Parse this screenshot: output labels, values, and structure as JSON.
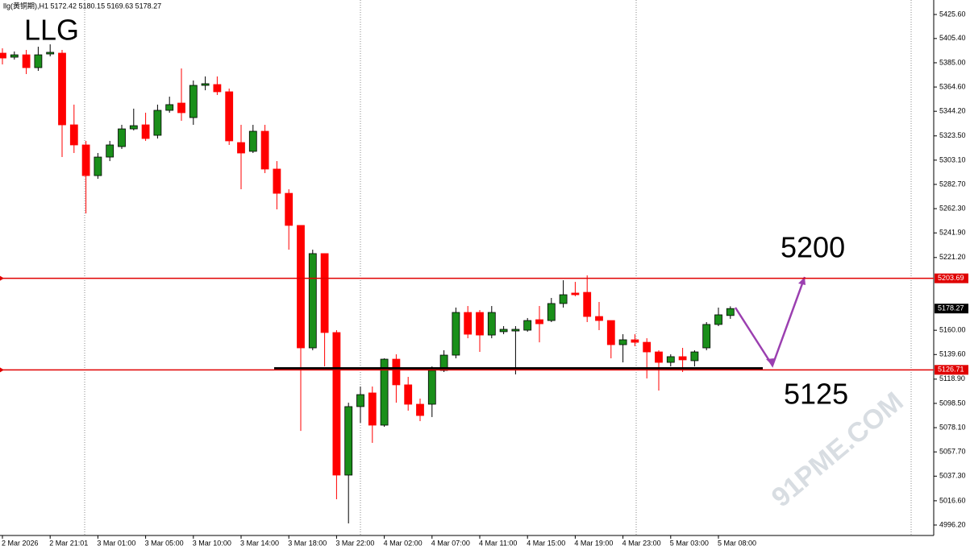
{
  "chart_data": {
    "type": "candlestick",
    "header": "llg(黄铜期),H1  5172.42 5180.15 5169.63 5178.27",
    "annotations": [
      "LLG",
      "5200",
      "5125"
    ],
    "watermark": "91PME.COM",
    "categories": [
      "2 Mar 2026",
      null,
      null,
      null,
      "2 Mar 21:01",
      null,
      null,
      null,
      "3 Mar 01:00",
      null,
      null,
      null,
      "3 Mar 05:00",
      null,
      null,
      null,
      "3 Mar 10:00",
      null,
      null,
      null,
      "3 Mar 14:00",
      null,
      null,
      null,
      "3 Mar 18:00",
      null,
      null,
      null,
      "3 Mar 22:00",
      null,
      null,
      null,
      "4 Mar 02:00",
      null,
      null,
      null,
      "4 Mar 07:00",
      null,
      null,
      null,
      "4 Mar 11:00",
      null,
      null,
      null,
      "4 Mar 15:00",
      null,
      null,
      null,
      "4 Mar 19:00",
      null,
      null,
      null,
      "4 Mar 23:00",
      null,
      null,
      null,
      "5 Mar 03:00",
      null,
      null,
      null,
      "5 Mar 08:00",
      null
    ],
    "ohlc": [
      [
        5393.1,
        5397.2,
        5383.6,
        5389.0
      ],
      [
        5389.7,
        5394.5,
        5387.7,
        5391.7
      ],
      [
        5391.7,
        5395.8,
        5375.5,
        5380.9
      ],
      [
        5380.9,
        5398.5,
        5378.2,
        5391.7
      ],
      [
        5392.4,
        5400.5,
        5390.4,
        5393.8
      ],
      [
        5393.1,
        5395.8,
        5305.7,
        5332.8
      ],
      [
        5332.8,
        5349.8,
        5309.1,
        5315.9
      ],
      [
        5315.9,
        5319.3,
        5258.3,
        5290.1
      ],
      [
        5290.1,
        5309.1,
        5287.4,
        5305.7
      ],
      [
        5305.7,
        5319.3,
        5302.3,
        5315.9
      ],
      [
        5314.5,
        5332.8,
        5312.5,
        5329.4
      ],
      [
        5329.4,
        5346.4,
        5328.1,
        5332.1
      ],
      [
        5332.8,
        5343.0,
        5319.3,
        5321.3
      ],
      [
        5324.0,
        5349.8,
        5321.3,
        5345.0
      ],
      [
        5345.0,
        5356.5,
        5343.0,
        5349.8
      ],
      [
        5351.1,
        5380.2,
        5336.2,
        5343.0
      ],
      [
        5338.9,
        5370.1,
        5332.8,
        5366.0
      ],
      [
        5366.0,
        5373.5,
        5361.9,
        5367.4
      ],
      [
        5366.7,
        5373.5,
        5357.9,
        5360.6
      ],
      [
        5360.6,
        5363.3,
        5315.9,
        5319.3
      ],
      [
        5317.9,
        5332.8,
        5278.6,
        5309.1
      ],
      [
        5310.5,
        5332.8,
        5309.1,
        5327.4
      ],
      [
        5327.4,
        5332.8,
        5292.2,
        5295.6
      ],
      [
        5295.6,
        5302.3,
        5261.7,
        5275.2
      ],
      [
        5275.2,
        5278.6,
        5227.8,
        5248.2
      ],
      [
        5248.2,
        5248.2,
        5075.4,
        5145.2
      ],
      [
        5145.2,
        5227.8,
        5143.2,
        5224.5
      ],
      [
        5224.5,
        5224.5,
        5129.6,
        5158.1
      ],
      [
        5158.1,
        5160.1,
        5017.9,
        5038.2
      ],
      [
        5038.2,
        5099.1,
        4997.6,
        5095.8
      ],
      [
        5095.8,
        5112.7,
        5082.2,
        5105.9
      ],
      [
        5107.3,
        5112.7,
        5065.3,
        5080.2
      ],
      [
        5080.2,
        5136.4,
        5078.8,
        5135.7
      ],
      [
        5135.7,
        5139.8,
        5099.1,
        5114.1
      ],
      [
        5114.1,
        5120.8,
        5092.4,
        5097.8
      ],
      [
        5097.8,
        5102.5,
        5083.6,
        5088.3
      ],
      [
        5097.8,
        5129.6,
        5087.0,
        5126.2
      ],
      [
        5126.2,
        5143.2,
        5124.9,
        5139.1
      ],
      [
        5139.1,
        5179.1,
        5136.4,
        5175.0
      ],
      [
        5175.0,
        5180.4,
        5153.3,
        5156.7
      ],
      [
        5175.0,
        5177.0,
        5141.8,
        5156.0
      ],
      [
        5156.0,
        5180.4,
        5153.3,
        5175.0
      ],
      [
        5158.8,
        5163.5,
        5156.7,
        5160.8
      ],
      [
        5159.4,
        5163.5,
        5122.9,
        5160.8
      ],
      [
        5160.1,
        5170.3,
        5158.8,
        5168.2
      ],
      [
        5168.9,
        5180.4,
        5149.9,
        5165.5
      ],
      [
        5168.2,
        5187.2,
        5166.9,
        5182.5
      ],
      [
        5182.5,
        5202.1,
        5179.1,
        5189.9
      ],
      [
        5191.3,
        5200.7,
        5188.6,
        5189.9
      ],
      [
        5191.9,
        5206.2,
        5166.9,
        5171.6
      ],
      [
        5171.6,
        5183.8,
        5160.1,
        5168.2
      ],
      [
        5168.2,
        5168.2,
        5136.4,
        5147.9
      ],
      [
        5147.9,
        5156.7,
        5133.0,
        5152.0
      ],
      [
        5152.0,
        5156.7,
        5146.6,
        5149.9
      ],
      [
        5149.9,
        5153.3,
        5119.5,
        5141.8
      ],
      [
        5141.8,
        5143.2,
        5109.3,
        5133.0
      ],
      [
        5133.0,
        5139.8,
        5129.6,
        5137.8
      ],
      [
        5137.8,
        5145.2,
        5124.9,
        5135.1
      ],
      [
        5134.4,
        5143.2,
        5129.6,
        5141.8
      ],
      [
        5145.2,
        5166.9,
        5143.2,
        5164.9
      ],
      [
        5164.9,
        5179.1,
        5163.5,
        5173.0
      ],
      [
        5172.42,
        5180.15,
        5169.63,
        5178.27
      ]
    ],
    "up_color": "#1a8f1a",
    "down_color": "#ff0000",
    "ylim": [
      4987.4,
      5437.8
    ],
    "yticks": [
      {
        "value": 5425.6,
        "label": "5425.60"
      },
      {
        "value": 5405.4,
        "label": "5405.40"
      },
      {
        "value": 5385.0,
        "label": "5385.00"
      },
      {
        "value": 5364.6,
        "label": "5364.60"
      },
      {
        "value": 5344.2,
        "label": "5344.20"
      },
      {
        "value": 5323.5,
        "label": "5323.50"
      },
      {
        "value": 5303.1,
        "label": "5303.10"
      },
      {
        "value": 5282.7,
        "label": "5282.70"
      },
      {
        "value": 5262.3,
        "label": "5262.30"
      },
      {
        "value": 5241.9,
        "label": "5241.90"
      },
      {
        "value": 5221.2,
        "label": "5221.20"
      },
      {
        "value": 5160.0,
        "label": "5160.00"
      },
      {
        "value": 5139.6,
        "label": "5139.60"
      },
      {
        "value": 5118.9,
        "label": "5118.90"
      },
      {
        "value": 5098.5,
        "label": "5098.50"
      },
      {
        "value": 5078.1,
        "label": "5078.10"
      },
      {
        "value": 5057.7,
        "label": "5057.70"
      },
      {
        "value": 5037.3,
        "label": "5037.30"
      },
      {
        "value": 5016.6,
        "label": "5016.60"
      },
      {
        "value": 4996.2,
        "label": "4996.20"
      }
    ],
    "hlines": [
      5203.69,
      5126.71
    ],
    "hline_color": "#e00000",
    "current_price": 5178.27
  }
}
